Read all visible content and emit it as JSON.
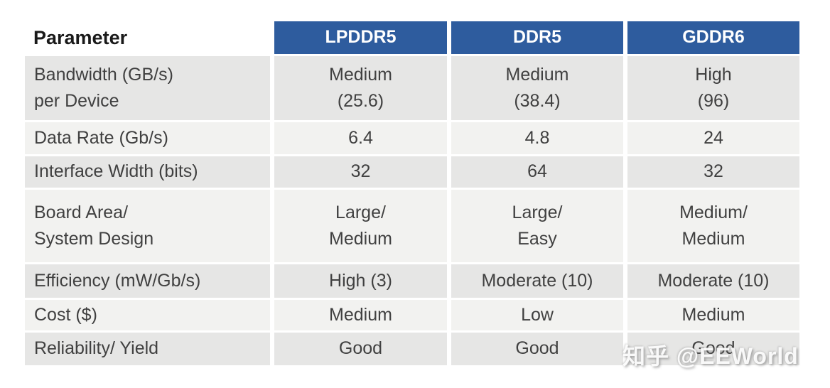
{
  "colors": {
    "header_bg": "#2E5C9E",
    "header_text": "#FFFFFF",
    "row_dark": "#E6E6E5",
    "row_light": "#F2F2F0",
    "cell_text": "#404040",
    "param_header_text": "#1A1A1A",
    "page_bg": "#FFFFFF"
  },
  "table": {
    "corner_header": "Parameter",
    "columns": [
      "LPDDR5",
      "DDR5",
      "GDDR6"
    ],
    "rows": [
      {
        "param": "Bandwidth (GB/s)\nper Device",
        "values": [
          "Medium\n(25.6)",
          "Medium\n(38.4)",
          "High\n(96)"
        ]
      },
      {
        "param": "Data Rate (Gb/s)",
        "values": [
          "6.4",
          "4.8",
          "24"
        ]
      },
      {
        "param": "Interface Width (bits)",
        "values": [
          "32",
          "64",
          "32"
        ]
      },
      {
        "param": "Board Area/\nSystem Design",
        "values": [
          "Large/\nMedium",
          "Large/\nEasy",
          "Medium/\nMedium"
        ]
      },
      {
        "param": "Efficiency (mW/Gb/s)",
        "values": [
          "High (3)",
          "Moderate (10)",
          "Moderate (10)"
        ]
      },
      {
        "param": "Cost ($)",
        "values": [
          "Medium",
          "Low",
          "Medium"
        ]
      },
      {
        "param": "Reliability/ Yield",
        "values": [
          "Good",
          "Good",
          "Good"
        ]
      }
    ]
  },
  "watermark": {
    "text": "知乎 @EEWorld"
  }
}
